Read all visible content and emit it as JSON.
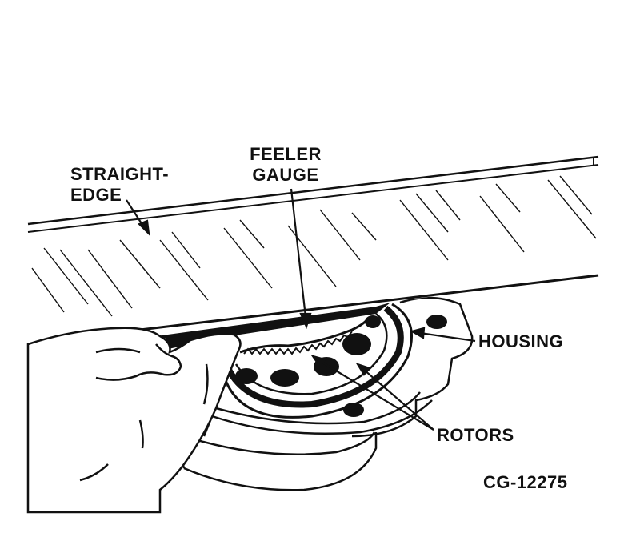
{
  "labels": {
    "straightedge_line1": "STRAIGHT-",
    "straightedge_line2": "EDGE",
    "feeler_line1": "FEELER",
    "feeler_line2": "GAUGE",
    "housing": "HOUSING",
    "rotors": "ROTORS",
    "figure_code": "CG-12275"
  },
  "colors": {
    "ink": "#111111",
    "paper": "#ffffff"
  }
}
